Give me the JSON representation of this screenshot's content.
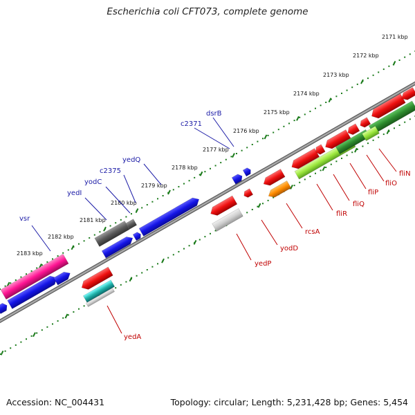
{
  "title": "Escherichia coli CFT073, complete genome",
  "footer": {
    "accession": "Accession: NC_004431",
    "summary": "Topology: circular; Length: 5,231,428 bp; Genes: 5,454"
  },
  "scale_labels": [
    "2171 kbp",
    "2172 kbp",
    "2173 kbp",
    "2174 kbp",
    "2175 kbp",
    "2176 kbp",
    "2177 kbp",
    "2178 kbp",
    "2179 kbp",
    "2180 kbp",
    "2181 kbp",
    "2182 kbp",
    "2183 kbp"
  ],
  "forward_strand_genes": [
    "dsrB",
    "c2371",
    "yedQ",
    "c2375",
    "yodC",
    "yedI",
    "vsr"
  ],
  "reverse_strand_genes": [
    "fliN",
    "fliO",
    "fliP",
    "fliQ",
    "fliR",
    "rcsA",
    "yodD",
    "yedP",
    "yedA"
  ],
  "colors": {
    "forward_cds": "#1414e6",
    "reverse_cds": "#e01010",
    "pseudogene": "#5a5a5a",
    "rna_light": "#c8c8c8",
    "flagellar_green": "#2e8b2e",
    "flagellar_lime": "#9be63c",
    "rcsA_orange": "#ff8c00",
    "cyan_feature": "#20b2aa",
    "magenta_feature": "#ff1493",
    "backbone": "#8c8c8c",
    "tick_green": "#1a7a1a"
  }
}
